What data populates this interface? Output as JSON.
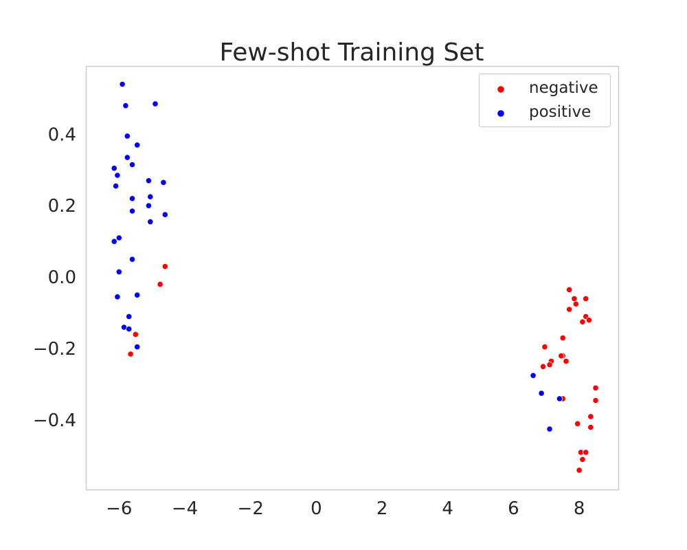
{
  "chart_data": {
    "type": "scatter",
    "title": "Few-shot Training Set",
    "xlabel": "",
    "ylabel": "",
    "xlim": [
      -7.0,
      9.2
    ],
    "ylim": [
      -0.595,
      0.59
    ],
    "xticks": [
      -6,
      -4,
      -2,
      0,
      2,
      4,
      6,
      8
    ],
    "xtick_labels": [
      "−6",
      "−4",
      "−2",
      "0",
      "2",
      "4",
      "6",
      "8"
    ],
    "yticks": [
      -0.4,
      -0.2,
      0.0,
      0.2,
      0.4
    ],
    "ytick_labels": [
      "−0.4",
      "−0.2",
      "0.0",
      "0.2",
      "0.4"
    ],
    "grid": false,
    "legend_position": "top-right",
    "series": [
      {
        "name": "negative",
        "color": "#ff0000",
        "points": [
          [
            -4.6,
            0.03
          ],
          [
            -4.75,
            -0.02
          ],
          [
            -5.5,
            -0.16
          ],
          [
            -5.65,
            -0.215
          ],
          [
            7.7,
            -0.035
          ],
          [
            7.85,
            -0.06
          ],
          [
            7.9,
            -0.075
          ],
          [
            8.2,
            -0.06
          ],
          [
            7.7,
            -0.09
          ],
          [
            8.2,
            -0.11
          ],
          [
            8.3,
            -0.12
          ],
          [
            8.1,
            -0.125
          ],
          [
            7.5,
            -0.17
          ],
          [
            6.95,
            -0.195
          ],
          [
            7.5,
            -0.22
          ],
          [
            7.45,
            -0.22
          ],
          [
            7.15,
            -0.235
          ],
          [
            7.6,
            -0.235
          ],
          [
            7.1,
            -0.245
          ],
          [
            6.9,
            -0.25
          ],
          [
            8.5,
            -0.31
          ],
          [
            7.5,
            -0.34
          ],
          [
            8.5,
            -0.345
          ],
          [
            8.35,
            -0.39
          ],
          [
            7.95,
            -0.41
          ],
          [
            8.35,
            -0.42
          ],
          [
            8.05,
            -0.49
          ],
          [
            8.2,
            -0.49
          ],
          [
            8.1,
            -0.51
          ],
          [
            8.0,
            -0.54
          ]
        ]
      },
      {
        "name": "positive",
        "color": "#0000ff",
        "points": [
          [
            -5.9,
            0.54
          ],
          [
            -5.8,
            0.48
          ],
          [
            -4.9,
            0.485
          ],
          [
            -5.75,
            0.395
          ],
          [
            -5.45,
            0.37
          ],
          [
            -5.75,
            0.335
          ],
          [
            -5.6,
            0.315
          ],
          [
            -6.15,
            0.305
          ],
          [
            -6.05,
            0.285
          ],
          [
            -5.1,
            0.27
          ],
          [
            -4.65,
            0.265
          ],
          [
            -6.1,
            0.255
          ],
          [
            -5.6,
            0.22
          ],
          [
            -5.05,
            0.225
          ],
          [
            -5.1,
            0.2
          ],
          [
            -5.6,
            0.185
          ],
          [
            -4.6,
            0.175
          ],
          [
            -5.05,
            0.155
          ],
          [
            -6.0,
            0.11
          ],
          [
            -6.15,
            0.1
          ],
          [
            -5.6,
            0.05
          ],
          [
            -6.0,
            0.015
          ],
          [
            -5.45,
            -0.05
          ],
          [
            -6.05,
            -0.055
          ],
          [
            -5.7,
            -0.11
          ],
          [
            -5.85,
            -0.14
          ],
          [
            -5.7,
            -0.145
          ],
          [
            -5.45,
            -0.195
          ],
          [
            6.6,
            -0.275
          ],
          [
            6.85,
            -0.325
          ],
          [
            7.4,
            -0.34
          ],
          [
            7.1,
            -0.425
          ]
        ]
      }
    ]
  }
}
